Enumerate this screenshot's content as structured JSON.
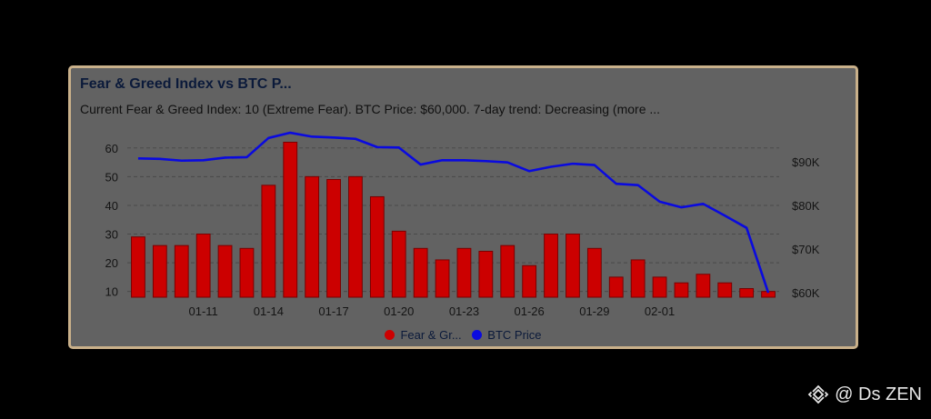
{
  "colors": {
    "background": "#000000",
    "card": "#626262",
    "border": "#c9b08a",
    "fear_greed": "#cc0000",
    "btc_price": "#0a0adf",
    "watermark": "#e8e8e8"
  },
  "chart_data": {
    "type": "bar",
    "title": "Fear & Greed Index vs BTC P...",
    "subtitle": "Current Fear & Greed Index: 10 (Extreme Fear). BTC Price: $60,000. 7-day trend: Decreasing (more ...",
    "x_tick_labels": [
      "01-11",
      "01-14",
      "01-17",
      "01-20",
      "01-23",
      "01-26",
      "01-29",
      "02-01"
    ],
    "x_tick_indices": [
      3,
      6,
      9,
      12,
      15,
      18,
      21,
      24
    ],
    "y_left": {
      "ticks": [
        10,
        20,
        30,
        40,
        50,
        60
      ],
      "lim": [
        8,
        65
      ]
    },
    "y_right": {
      "ticks": [
        60,
        70,
        80,
        90
      ],
      "tick_labels": [
        "$60K",
        "$70K",
        "$80K",
        "$90K"
      ],
      "lim": [
        59,
        96.5
      ],
      "unit": "K"
    },
    "grid": true,
    "legend_position": "bottom",
    "series": [
      {
        "name": "Fear & Gr...",
        "type": "bar",
        "axis": "left",
        "values": [
          29,
          26,
          26,
          30,
          26,
          25,
          47,
          62,
          50,
          49,
          50,
          43,
          31,
          25,
          21,
          25,
          24,
          26,
          19,
          30,
          30,
          25,
          15,
          21,
          15,
          13,
          16,
          13,
          11,
          10
        ]
      },
      {
        "name": "BTC Price",
        "type": "line",
        "axis": "right",
        "values": [
          90.8,
          90.7,
          90.3,
          90.4,
          91.0,
          91.1,
          95.5,
          96.7,
          95.8,
          95.6,
          95.3,
          93.4,
          93.3,
          89.4,
          90.4,
          90.4,
          90.2,
          89.9,
          87.9,
          88.9,
          89.6,
          89.3,
          85.0,
          84.7,
          80.9,
          79.6,
          80.4,
          77.7,
          74.9,
          60.0
        ]
      }
    ]
  },
  "legend": [
    {
      "label": "Fear & Gr...",
      "color": "#cc0000"
    },
    {
      "label": "BTC Price",
      "color": "#0a0adf"
    }
  ],
  "watermark": {
    "text": "@ Ds ZEN",
    "icon": "binance-logo-icon"
  }
}
